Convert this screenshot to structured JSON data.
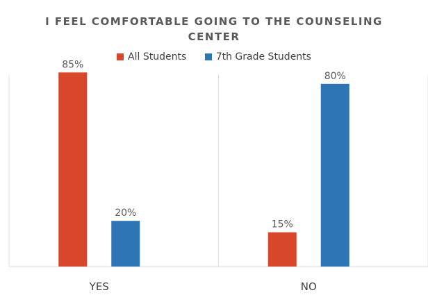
{
  "chart_data": {
    "type": "bar",
    "title_lines": [
      "I FEEL COMFORTABLE GOING TO THE COUNSELING",
      "CENTER"
    ],
    "categories": [
      "YES",
      "NO"
    ],
    "series": [
      {
        "name": "All Students",
        "values": [
          85,
          15
        ],
        "labels": [
          "85%",
          "15%"
        ],
        "color": "#D9472B"
      },
      {
        "name": "7th Grade Students",
        "values": [
          20,
          80
        ],
        "labels": [
          "20%",
          "80%"
        ],
        "color": "#2E75B6"
      }
    ],
    "ylim": [
      0,
      100
    ],
    "legend_position": "top",
    "grid": "vertical separators only"
  }
}
